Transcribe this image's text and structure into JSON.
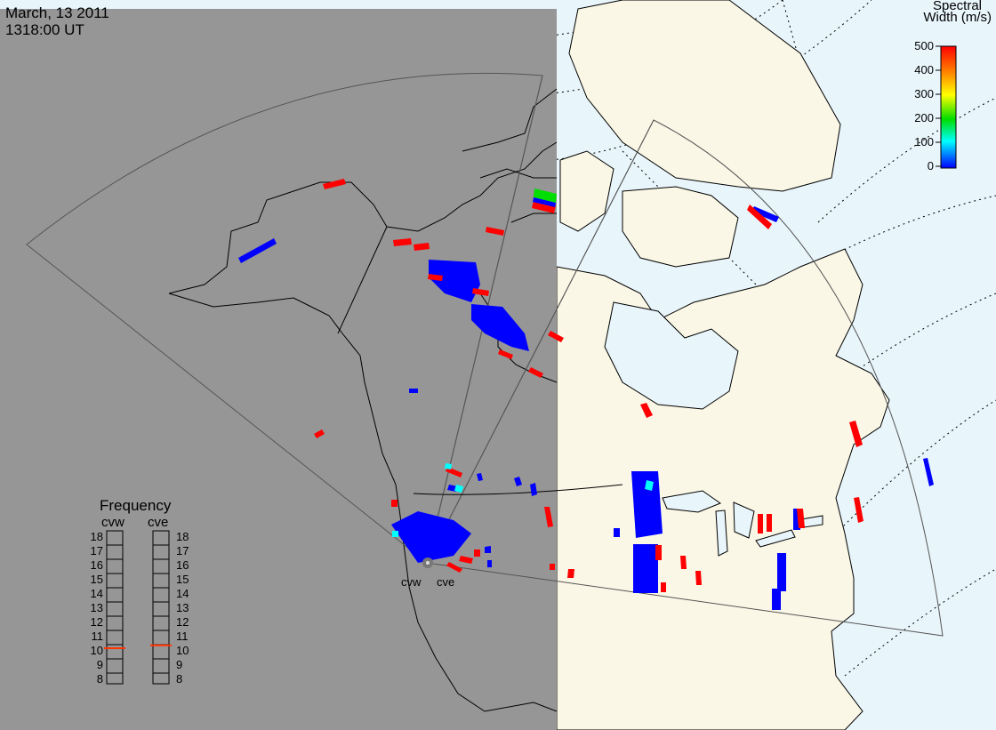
{
  "title": {
    "date": "March, 13 2011",
    "time": "1318:00 UT"
  },
  "colorbar": {
    "title_line1": "Spectral",
    "title_line2": "Width (m/s)",
    "ticks": [
      "500",
      "400",
      "300",
      "200",
      "100",
      "0"
    ],
    "stops": [
      "#ff0000",
      "#ff8800",
      "#ffff00",
      "#00dd00",
      "#00ffff",
      "#0000ff"
    ]
  },
  "frequency_panel": {
    "title": "Frequency",
    "radars": [
      {
        "label": "cvw",
        "freq_mhz": 10.5,
        "indicator_color": "#ff3300"
      },
      {
        "label": "cve",
        "freq_mhz": 10.7,
        "indicator_color": "#ff3300"
      }
    ],
    "ticks": [
      "18",
      "17",
      "16",
      "15",
      "14",
      "13",
      "12",
      "11",
      "10",
      "9",
      "8"
    ]
  },
  "stations": [
    "cvw",
    "cve"
  ],
  "colors": {
    "night": "#969696",
    "land_day": "#fbf7e6",
    "ocean_day": "#e8f5fb",
    "data_blue": "#0000ff",
    "data_red": "#ff0000",
    "data_cyan": "#00ffff",
    "data_green": "#00dd00"
  }
}
